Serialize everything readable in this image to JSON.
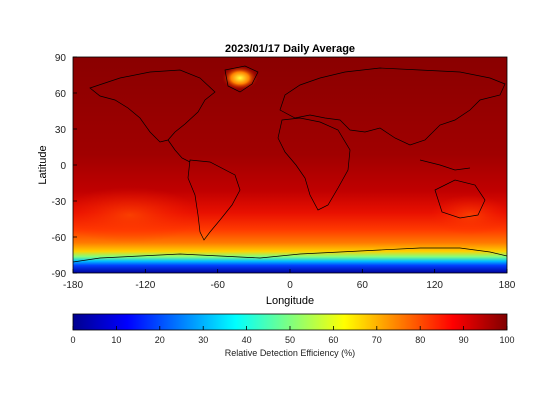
{
  "chart_data": {
    "type": "heatmap",
    "title": "2023/01/17 Daily Average",
    "xlabel": "Longitude",
    "ylabel": "Latitude",
    "xlim": [
      -180,
      180
    ],
    "ylim": [
      -90,
      90
    ],
    "xticks": [
      -180,
      -120,
      -60,
      0,
      60,
      120,
      180
    ],
    "yticks": [
      90,
      60,
      30,
      0,
      -30,
      -60,
      -90
    ],
    "colorbar": {
      "label": "Relative Detection Efficiency (%)",
      "range": [
        0,
        100
      ],
      "ticks": [
        0,
        10,
        20,
        30,
        40,
        50,
        60,
        70,
        80,
        90,
        100
      ],
      "colormap": "jet"
    },
    "description_values": {
      "lat_band_profile": [
        {
          "lat": 90,
          "value": 97
        },
        {
          "lat": 60,
          "value": 96
        },
        {
          "lat": 30,
          "value": 95
        },
        {
          "lat": 0,
          "value": 94
        },
        {
          "lat": -30,
          "value": 92
        },
        {
          "lat": -45,
          "value": 88
        },
        {
          "lat": -60,
          "value": 82
        },
        {
          "lat": -68,
          "value": 70
        },
        {
          "lat": -75,
          "value": 45
        },
        {
          "lat": -80,
          "value": 20
        },
        {
          "lat": -90,
          "value": 5
        }
      ],
      "greenland_min": 65
    }
  }
}
